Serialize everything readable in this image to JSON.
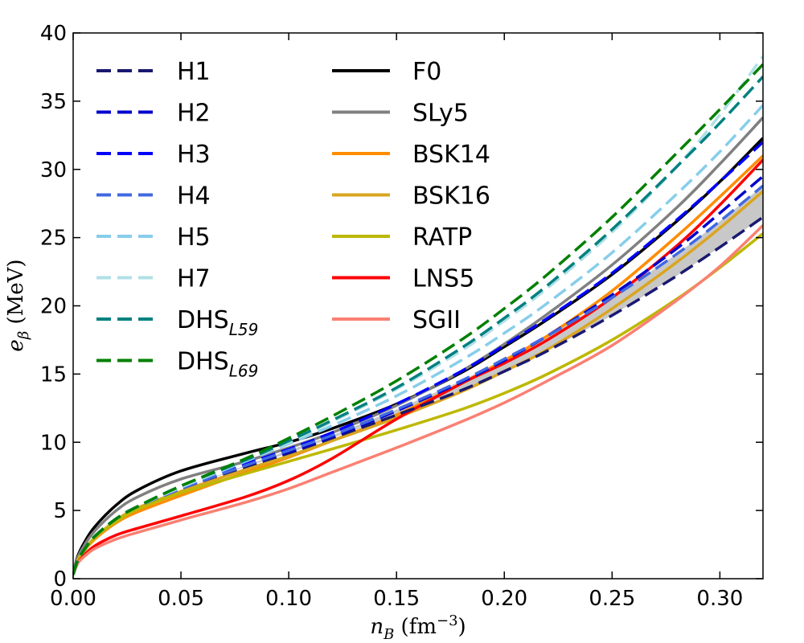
{
  "chart_data": {
    "type": "line",
    "xlabel": "n_B (fm⁻³)",
    "ylabel": "e_β (MeV)",
    "xlim": [
      0,
      0.32
    ],
    "ylim": [
      0,
      40
    ],
    "xticks": [
      "0.00",
      "0.05",
      "0.10",
      "0.15",
      "0.20",
      "0.25",
      "0.30"
    ],
    "yticks": [
      "0",
      "5",
      "10",
      "15",
      "20",
      "25",
      "30",
      "35",
      "40"
    ],
    "grid": false,
    "legend": "upper-left, two columns",
    "x": [
      0.0,
      0.002,
      0.005,
      0.01,
      0.02,
      0.03,
      0.05,
      0.08,
      0.1,
      0.12,
      0.15,
      0.18,
      0.2,
      0.22,
      0.25,
      0.28,
      0.3,
      0.32
    ],
    "shaded_band": {
      "between": [
        "H1",
        "H4"
      ],
      "color": "#c8c8c8"
    },
    "series": [
      {
        "name": "H1",
        "style": "dashed",
        "color": "#191970",
        "values": [
          0.3,
          1.3,
          2.1,
          3.1,
          4.4,
          5.3,
          6.6,
          8.2,
          9.2,
          10.3,
          12.0,
          13.8,
          15.2,
          16.7,
          19.3,
          22.2,
          24.3,
          26.5
        ]
      },
      {
        "name": "H2",
        "style": "dashed",
        "color": "#0000cd",
        "values": [
          0.3,
          1.3,
          2.1,
          3.1,
          4.4,
          5.3,
          6.6,
          8.3,
          9.3,
          10.4,
          12.3,
          14.4,
          16.0,
          17.8,
          20.8,
          24.2,
          26.8,
          29.5
        ]
      },
      {
        "name": "H3",
        "style": "dashed",
        "color": "#0000ff",
        "values": [
          0.3,
          1.3,
          2.1,
          3.1,
          4.4,
          5.3,
          6.6,
          8.4,
          9.5,
          10.7,
          12.8,
          15.2,
          17.1,
          19.1,
          22.4,
          26.3,
          29.1,
          32.0
        ]
      },
      {
        "name": "H4",
        "style": "dashed",
        "color": "#4169e1",
        "values": [
          0.3,
          1.3,
          2.1,
          3.1,
          4.4,
          5.3,
          6.6,
          8.3,
          9.4,
          10.5,
          12.4,
          14.5,
          16.1,
          17.8,
          20.6,
          23.8,
          26.2,
          28.8
        ]
      },
      {
        "name": "H5",
        "style": "dashed",
        "color": "#87ceeb",
        "values": [
          0.3,
          1.3,
          2.1,
          3.1,
          4.4,
          5.3,
          6.7,
          8.6,
          9.9,
          11.2,
          13.4,
          16.0,
          18.0,
          20.2,
          23.9,
          28.2,
          31.3,
          34.7
        ]
      },
      {
        "name": "H7",
        "style": "dashed",
        "color": "#b0e0e6",
        "values": [
          0.3,
          1.3,
          2.1,
          3.1,
          4.4,
          5.3,
          6.7,
          8.7,
          10.0,
          11.5,
          13.9,
          16.7,
          18.9,
          21.3,
          25.4,
          30.2,
          34.0,
          38.3
        ]
      },
      {
        "name": "DHS_L59",
        "style": "dashed",
        "color": "#008080",
        "values": [
          0.3,
          1.3,
          2.1,
          3.1,
          4.4,
          5.3,
          6.8,
          8.7,
          10.1,
          11.6,
          14.0,
          16.9,
          19.1,
          21.5,
          25.6,
          30.2,
          33.4,
          36.8
        ]
      },
      {
        "name": "DHS_L69",
        "style": "dashed",
        "color": "#008000",
        "values": [
          0.3,
          1.3,
          2.1,
          3.1,
          4.4,
          5.3,
          6.8,
          8.8,
          10.3,
          11.9,
          14.5,
          17.5,
          19.8,
          22.3,
          26.5,
          31.2,
          34.4,
          37.7
        ]
      },
      {
        "name": "F0",
        "style": "solid",
        "color": "#000000",
        "values": [
          0.3,
          1.6,
          2.6,
          3.8,
          5.4,
          6.5,
          7.9,
          9.2,
          10.0,
          11.0,
          12.8,
          15.1,
          17.0,
          19.0,
          22.3,
          26.2,
          29.1,
          32.3
        ]
      },
      {
        "name": "SLy5",
        "style": "solid",
        "color": "#808080",
        "values": [
          0.3,
          1.5,
          2.4,
          3.5,
          5.0,
          6.0,
          7.3,
          8.6,
          9.6,
          10.7,
          12.7,
          15.2,
          17.2,
          19.4,
          23.0,
          27.2,
          30.4,
          33.8
        ]
      },
      {
        "name": "BSK14",
        "style": "solid",
        "color": "#ff8c00",
        "values": [
          0.3,
          1.3,
          2.0,
          2.9,
          4.1,
          4.9,
          6.1,
          7.8,
          8.9,
          10.1,
          12.0,
          14.3,
          16.0,
          17.8,
          21.1,
          25.1,
          28.0,
          31.0
        ]
      },
      {
        "name": "BSK16",
        "style": "solid",
        "color": "#daa520",
        "values": [
          0.3,
          1.3,
          2.1,
          3.0,
          4.3,
          5.2,
          6.4,
          8.0,
          9.0,
          10.1,
          11.8,
          13.7,
          15.2,
          16.8,
          19.8,
          23.2,
          25.7,
          28.4
        ]
      },
      {
        "name": "RATP",
        "style": "solid",
        "color": "#bdb800",
        "values": [
          0.3,
          1.3,
          2.0,
          3.0,
          4.2,
          5.1,
          6.3,
          7.7,
          8.6,
          9.5,
          10.9,
          12.4,
          13.6,
          15.0,
          17.5,
          20.5,
          22.8,
          25.3
        ]
      },
      {
        "name": "LNS5",
        "style": "solid",
        "color": "#ff0000",
        "values": [
          0.3,
          1.1,
          1.7,
          2.4,
          3.2,
          3.7,
          4.6,
          6.0,
          7.2,
          8.8,
          11.7,
          14.3,
          15.8,
          17.5,
          20.6,
          24.4,
          27.4,
          30.7
        ]
      },
      {
        "name": "SGII",
        "style": "solid",
        "color": "#fa8072",
        "values": [
          0.3,
          1.1,
          1.6,
          2.2,
          2.9,
          3.4,
          4.3,
          5.6,
          6.6,
          7.8,
          9.6,
          11.5,
          12.9,
          14.5,
          17.1,
          20.4,
          22.9,
          25.9
        ]
      }
    ]
  }
}
